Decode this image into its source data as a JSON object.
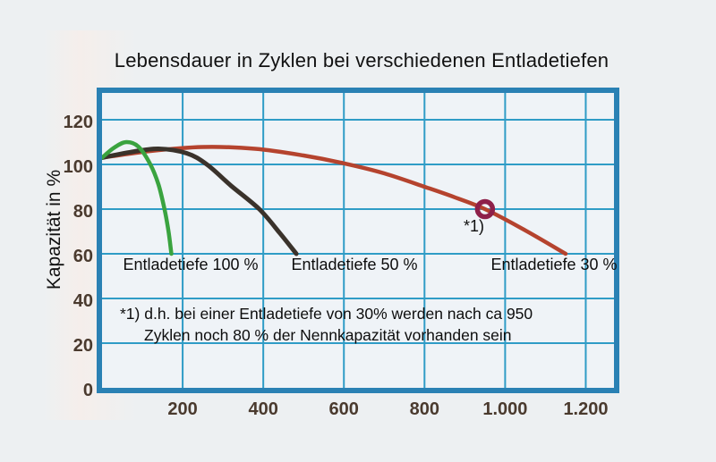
{
  "title": "Lebensdauer in Zyklen bei verschiedenen Entladetiefen",
  "y_axis_title": "Kapazität in %",
  "footnote": {
    "line1": "*1) d.h. bei einer Entladetiefe von 30% werden nach ca 950",
    "line2": "Zyklen noch 80 % der Nennkapazität vorhanden sein"
  },
  "colors": {
    "page_background": "#edf0f2",
    "plot_background": "#eff3f7",
    "grid_line": "#2f9cc6",
    "plot_border": "#2a81b4",
    "tick_text": "#4a3a2e",
    "text": "#111111",
    "annotation_ring": "#8e2049"
  },
  "chart_data": {
    "type": "line",
    "title": "Lebensdauer in Zyklen bei verschiedenen Entladetiefen",
    "xlabel": "",
    "ylabel": "Kapazität in %",
    "xlim": [
      0,
      1270
    ],
    "ylim": [
      0,
      132
    ],
    "grid": true,
    "legend_position": "inline-labels",
    "x_ticks": [
      {
        "value": 200,
        "label": "200"
      },
      {
        "value": 400,
        "label": "400"
      },
      {
        "value": 600,
        "label": "600"
      },
      {
        "value": 800,
        "label": "800"
      },
      {
        "value": 1000,
        "label": "1.000"
      },
      {
        "value": 1200,
        "label": "1.200"
      }
    ],
    "y_ticks": [
      {
        "value": 0,
        "label": "0"
      },
      {
        "value": 20,
        "label": "20"
      },
      {
        "value": 40,
        "label": "40"
      },
      {
        "value": 60,
        "label": "60"
      },
      {
        "value": 80,
        "label": "80"
      },
      {
        "value": 100,
        "label": "100"
      },
      {
        "value": 120,
        "label": "120"
      }
    ],
    "series": [
      {
        "name": "Entladetiefe 100 %",
        "color": "#3aa33f",
        "points": [
          [
            0,
            103
          ],
          [
            30,
            107.5
          ],
          [
            60,
            110
          ],
          [
            90,
            108
          ],
          [
            120,
            100
          ],
          [
            140,
            91
          ],
          [
            155,
            80
          ],
          [
            165,
            70
          ],
          [
            172,
            60
          ]
        ]
      },
      {
        "name": "Entladetiefe 50 %",
        "color": "#3a322b",
        "points": [
          [
            0,
            103
          ],
          [
            70,
            105.5
          ],
          [
            140,
            107
          ],
          [
            210,
            105
          ],
          [
            260,
            100
          ],
          [
            320,
            90.5
          ],
          [
            390,
            80
          ],
          [
            440,
            69.5
          ],
          [
            482,
            60
          ]
        ]
      },
      {
        "name": "Entladetiefe 30 %",
        "color": "#b5432e",
        "points": [
          [
            0,
            103
          ],
          [
            120,
            106
          ],
          [
            250,
            107.8
          ],
          [
            380,
            107
          ],
          [
            500,
            104
          ],
          [
            600,
            100.5
          ],
          [
            700,
            96
          ],
          [
            800,
            90
          ],
          [
            875,
            85.3
          ],
          [
            950,
            80
          ],
          [
            1050,
            70.5
          ],
          [
            1150,
            60
          ]
        ]
      }
    ],
    "annotation": {
      "x": 950,
      "y": 80,
      "label": "*1)"
    }
  }
}
